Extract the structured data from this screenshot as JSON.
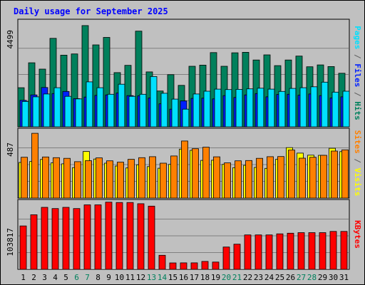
{
  "chart_data": {
    "type": "bar",
    "title": "Daily usage for September 2025",
    "categories": [
      "1",
      "2",
      "3",
      "4",
      "5",
      "6",
      "7",
      "8",
      "9",
      "10",
      "11",
      "12",
      "13",
      "14",
      "15",
      "16",
      "17",
      "18",
      "19",
      "20",
      "21",
      "22",
      "23",
      "24",
      "25",
      "26",
      "27",
      "28",
      "29",
      "30",
      "31"
    ],
    "weekend_days": [
      6,
      7,
      13,
      14,
      20,
      21,
      27,
      28
    ],
    "panels": [
      {
        "id": "hits-files-pages",
        "scale_label": "4499",
        "ymax": 4499,
        "series": [
          {
            "name": "Hits",
            "color": "#00805c",
            "values": [
              1680,
              2750,
              2480,
              3800,
              3080,
              3130,
              4350,
              3520,
              3840,
              2330,
              2640,
              4110,
              2360,
              1540,
              2240,
              1780,
              2600,
              2650,
              3190,
              2600,
              3180,
              3200,
              2870,
              3090,
              2630,
              2870,
              3040,
              2580,
              2660,
              2590,
              2300
            ]
          },
          {
            "name": "Files",
            "color": "#0020ff",
            "values": [
              1140,
              1370,
              1690,
              1430,
              1520,
              1210,
              1280,
              1350,
              1370,
              1450,
              1340,
              1330,
              1240,
              990,
              760,
              1110,
              1220,
              1230,
              1200,
              1340,
              1260,
              1370,
              1430,
              1290,
              1390,
              1400,
              1360,
              1410,
              1340,
              1240,
              1290
            ]
          },
          {
            "name": "Pages",
            "color": "#00e0ff",
            "values": [
              1090,
              1290,
              1410,
              1680,
              1310,
              1200,
              1930,
              1680,
              1400,
              1830,
              1310,
              1400,
              2160,
              1440,
              1190,
              760,
              1410,
              1530,
              1620,
              1600,
              1610,
              1630,
              1660,
              1620,
              1520,
              1650,
              1680,
              1720,
              1920,
              1490,
              1530
            ]
          }
        ],
        "axis_label_parts": [
          {
            "text": "Pages",
            "color": "#00e0ff"
          },
          {
            "text": " / ",
            "color": "#606060"
          },
          {
            "text": "Files",
            "color": "#0020ff"
          },
          {
            "text": " / ",
            "color": "#606060"
          },
          {
            "text": "Hits",
            "color": "#00805c"
          }
        ]
      },
      {
        "id": "visits-sites",
        "scale_label": "487",
        "ymax": 487,
        "series": [
          {
            "name": "Visits",
            "color": "#ffff00",
            "values": [
              259,
              266,
              281,
              256,
              249,
              221,
              339,
              284,
              254,
              233,
              219,
              242,
              229,
              217,
              245,
              356,
              347,
              274,
              275,
              245,
              221,
              238,
              223,
              216,
              282,
              367,
              327,
              312,
              311,
              362,
              338
            ]
          },
          {
            "name": "Sites",
            "color": "#ff8000",
            "values": [
              297,
              471,
              299,
              294,
              289,
              265,
              272,
              292,
              271,
              261,
              282,
              294,
              301,
              254,
              306,
              415,
              359,
              370,
              300,
              256,
              271,
              273,
              289,
              301,
              302,
              349,
              290,
              297,
              311,
              342,
              351
            ]
          }
        ],
        "axis_label_parts": [
          {
            "text": "Sites",
            "color": "#ff8000"
          },
          {
            "text": " / ",
            "color": "#606060"
          },
          {
            "text": "Visits",
            "color": "#ffff00"
          }
        ]
      },
      {
        "id": "kbytes",
        "scale_label": "103817",
        "ymax": 103817,
        "series": [
          {
            "name": "KBytes",
            "color": "#ff0000",
            "values": [
              67220,
              84550,
              96130,
              94240,
              96130,
              94240,
              99900,
              99900,
              104150,
              103590,
              103590,
              101710,
              97940,
              21800,
              9930,
              10040,
              10040,
              12210,
              11240,
              34550,
              39000,
              53340,
              53340,
              53340,
              55050,
              56050,
              56920,
              56920,
              56920,
              58730,
              58730
            ]
          }
        ],
        "axis_label_parts": [
          {
            "text": "KBytes",
            "color": "#ff0000"
          }
        ]
      }
    ]
  }
}
